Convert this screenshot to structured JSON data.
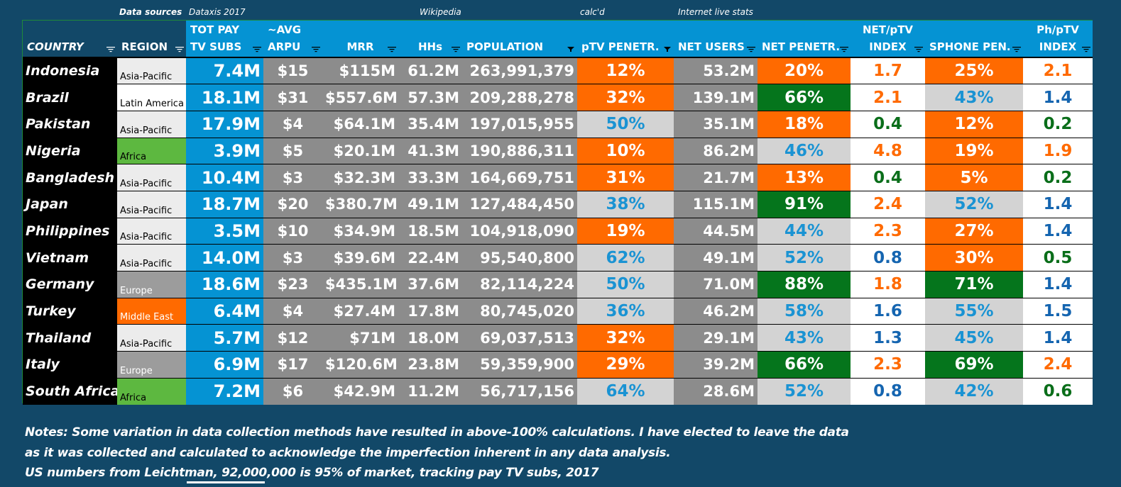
{
  "sources": {
    "label": "Data sources",
    "dataxis": "Dataxis 2017",
    "wikipedia": "Wikipedia",
    "calcd": "calc'd",
    "internet_live_stats": "Internet live stats"
  },
  "headers": [
    {
      "line1": "",
      "line2": "COUNTRY",
      "filter": "filter-icon"
    },
    {
      "line1": "",
      "line2": "REGION",
      "filter": "filter-icon"
    },
    {
      "line1": "TOT PAY",
      "line2": "TV SUBS",
      "filter": "filter-icon"
    },
    {
      "line1": "~AVG",
      "line2": "ARPU",
      "filter": "filter-icon"
    },
    {
      "line1": "",
      "line2": "MRR",
      "filter": "filter-icon"
    },
    {
      "line1": "",
      "line2": "HHs",
      "filter": "filter-icon"
    },
    {
      "line1": "",
      "line2": "POPULATION",
      "filter": "filter-active-icon"
    },
    {
      "line1": "",
      "line2": "pTV PENETR.",
      "filter": "filter-active-icon"
    },
    {
      "line1": "",
      "line2": "NET USERS",
      "filter": "filter-icon"
    },
    {
      "line1": "",
      "line2": "NET PENETR.",
      "filter": "filter-icon"
    },
    {
      "line1": "NET/pTV",
      "line2": "INDEX",
      "filter": "filter-icon"
    },
    {
      "line1": "",
      "line2": "SPHONE PEN.",
      "filter": "filter-icon"
    },
    {
      "line1": "Ph/pTV",
      "line2": "INDEX",
      "filter": "filter-icon"
    }
  ],
  "colors": {
    "background": "#124868",
    "header_blue": "#0593d3",
    "orange": "#ff6a00",
    "green": "#05751c",
    "light_grey": "#d3d3d3",
    "grey": "#8c8c8c",
    "text_blue": "#1a93d3",
    "index_orange": "#ff6a00",
    "index_blue": "#1565b0",
    "index_green": "#0a6e1a",
    "region_asia": "#ececec",
    "region_latam": "#ffffff",
    "region_africa": "#5db840",
    "region_europe": "#9c9c9c",
    "region_mideast": "#ff6a00"
  },
  "rows": [
    {
      "country": "Indonesia",
      "region": "Asia-Pacific",
      "region_style": "asia",
      "subs": "7.4M",
      "arpu": "$15",
      "mrr": "$115M",
      "hhs": "61.2M",
      "population": "263,991,379",
      "ptv": "12%",
      "ptv_style": "orange",
      "net_users": "53.2M",
      "net_pen": "20%",
      "net_pen_style": "orange",
      "net_idx": "1.7",
      "net_idx_style": "orange",
      "sphone": "25%",
      "sphone_style": "orange",
      "ph_idx": "2.1",
      "ph_idx_style": "orange"
    },
    {
      "country": "Brazil",
      "region": "Latin America",
      "region_style": "latam",
      "subs": "18.1M",
      "arpu": "$31",
      "mrr": "$557.6M",
      "hhs": "57.3M",
      "population": "209,288,278",
      "ptv": "32%",
      "ptv_style": "orange",
      "net_users": "139.1M",
      "net_pen": "66%",
      "net_pen_style": "green",
      "net_idx": "2.1",
      "net_idx_style": "orange",
      "sphone": "43%",
      "sphone_style": "light",
      "ph_idx": "1.4",
      "ph_idx_style": "blue"
    },
    {
      "country": "Pakistan",
      "region": "Asia-Pacific",
      "region_style": "asia",
      "subs": "17.9M",
      "arpu": "$4",
      "mrr": "$64.1M",
      "hhs": "35.4M",
      "population": "197,015,955",
      "ptv": "50%",
      "ptv_style": "light",
      "net_users": "35.1M",
      "net_pen": "18%",
      "net_pen_style": "orange",
      "net_idx": "0.4",
      "net_idx_style": "green",
      "sphone": "12%",
      "sphone_style": "orange",
      "ph_idx": "0.2",
      "ph_idx_style": "green"
    },
    {
      "country": "Nigeria",
      "region": "Africa",
      "region_style": "africa",
      "subs": "3.9M",
      "arpu": "$5",
      "mrr": "$20.1M",
      "hhs": "41.3M",
      "population": "190,886,311",
      "ptv": "10%",
      "ptv_style": "orange",
      "net_users": "86.2M",
      "net_pen": "46%",
      "net_pen_style": "light",
      "net_idx": "4.8",
      "net_idx_style": "orange",
      "sphone": "19%",
      "sphone_style": "orange",
      "ph_idx": "1.9",
      "ph_idx_style": "orange"
    },
    {
      "country": "Bangladesh",
      "region": "Asia-Pacific",
      "region_style": "asia",
      "subs": "10.4M",
      "arpu": "$3",
      "mrr": "$32.3M",
      "hhs": "33.3M",
      "population": "164,669,751",
      "ptv": "31%",
      "ptv_style": "orange",
      "net_users": "21.7M",
      "net_pen": "13%",
      "net_pen_style": "orange",
      "net_idx": "0.4",
      "net_idx_style": "green",
      "sphone": "5%",
      "sphone_style": "orange",
      "ph_idx": "0.2",
      "ph_idx_style": "green"
    },
    {
      "country": "Japan",
      "region": "Asia-Pacific",
      "region_style": "asia",
      "subs": "18.7M",
      "arpu": "$20",
      "mrr": "$380.7M",
      "hhs": "49.1M",
      "population": "127,484,450",
      "ptv": "38%",
      "ptv_style": "light",
      "net_users": "115.1M",
      "net_pen": "91%",
      "net_pen_style": "green",
      "net_idx": "2.4",
      "net_idx_style": "orange",
      "sphone": "52%",
      "sphone_style": "light",
      "ph_idx": "1.4",
      "ph_idx_style": "blue"
    },
    {
      "country": "Philippines",
      "region": "Asia-Pacific",
      "region_style": "asia",
      "subs": "3.5M",
      "arpu": "$10",
      "mrr": "$34.9M",
      "hhs": "18.5M",
      "population": "104,918,090",
      "ptv": "19%",
      "ptv_style": "orange",
      "net_users": "44.5M",
      "net_pen": "44%",
      "net_pen_style": "light",
      "net_idx": "2.3",
      "net_idx_style": "orange",
      "sphone": "27%",
      "sphone_style": "orange",
      "ph_idx": "1.4",
      "ph_idx_style": "blue"
    },
    {
      "country": "Vietnam",
      "region": "Asia-Pacific",
      "region_style": "asia",
      "subs": "14.0M",
      "arpu": "$3",
      "mrr": "$39.6M",
      "hhs": "22.4M",
      "population": "95,540,800",
      "ptv": "62%",
      "ptv_style": "light",
      "net_users": "49.1M",
      "net_pen": "52%",
      "net_pen_style": "light",
      "net_idx": "0.8",
      "net_idx_style": "blue",
      "sphone": "30%",
      "sphone_style": "orange",
      "ph_idx": "0.5",
      "ph_idx_style": "green"
    },
    {
      "country": "Germany",
      "region": "Europe",
      "region_style": "europe",
      "subs": "18.6M",
      "arpu": "$23",
      "mrr": "$435.1M",
      "hhs": "37.6M",
      "population": "82,114,224",
      "ptv": "50%",
      "ptv_style": "light",
      "net_users": "71.0M",
      "net_pen": "88%",
      "net_pen_style": "green",
      "net_idx": "1.8",
      "net_idx_style": "orange",
      "sphone": "71%",
      "sphone_style": "green",
      "ph_idx": "1.4",
      "ph_idx_style": "blue"
    },
    {
      "country": "Turkey",
      "region": "Middle East",
      "region_style": "mideast",
      "subs": "6.4M",
      "arpu": "$4",
      "mrr": "$27.4M",
      "hhs": "17.8M",
      "population": "80,745,020",
      "ptv": "36%",
      "ptv_style": "light",
      "net_users": "46.2M",
      "net_pen": "58%",
      "net_pen_style": "light",
      "net_idx": "1.6",
      "net_idx_style": "blue",
      "sphone": "55%",
      "sphone_style": "light",
      "ph_idx": "1.5",
      "ph_idx_style": "blue"
    },
    {
      "country": "Thailand",
      "region": "Asia-Pacific",
      "region_style": "asia",
      "subs": "5.7M",
      "arpu": "$12",
      "mrr": "$71M",
      "hhs": "18.0M",
      "population": "69,037,513",
      "ptv": "32%",
      "ptv_style": "orange",
      "net_users": "29.1M",
      "net_pen": "43%",
      "net_pen_style": "light",
      "net_idx": "1.3",
      "net_idx_style": "blue",
      "sphone": "45%",
      "sphone_style": "light",
      "ph_idx": "1.4",
      "ph_idx_style": "blue"
    },
    {
      "country": "Italy",
      "region": "Europe",
      "region_style": "europe",
      "subs": "6.9M",
      "arpu": "$17",
      "mrr": "$120.6M",
      "hhs": "23.8M",
      "population": "59,359,900",
      "ptv": "29%",
      "ptv_style": "orange",
      "net_users": "39.2M",
      "net_pen": "66%",
      "net_pen_style": "green",
      "net_idx": "2.3",
      "net_idx_style": "orange",
      "sphone": "69%",
      "sphone_style": "green",
      "ph_idx": "2.4",
      "ph_idx_style": "orange"
    },
    {
      "country": "South Africa",
      "region": "Africa",
      "region_style": "africa",
      "subs": "7.2M",
      "arpu": "$6",
      "mrr": "$42.9M",
      "hhs": "11.2M",
      "population": "56,717,156",
      "ptv": "64%",
      "ptv_style": "light",
      "net_users": "28.6M",
      "net_pen": "52%",
      "net_pen_style": "light",
      "net_idx": "0.8",
      "net_idx_style": "blue",
      "sphone": "42%",
      "sphone_style": "light",
      "ph_idx": "0.6",
      "ph_idx_style": "green"
    }
  ],
  "notes": [
    "Notes: Some variation in data collection methods have resulted in above-100% calculations. I have elected to leave the data",
    "as it was collected and calculated to acknowledge the imperfection inherent in any data analysis.",
    "US numbers from Leichtman, 92,000,000 is 95% of market, tracking pay TV subs, 2017"
  ]
}
